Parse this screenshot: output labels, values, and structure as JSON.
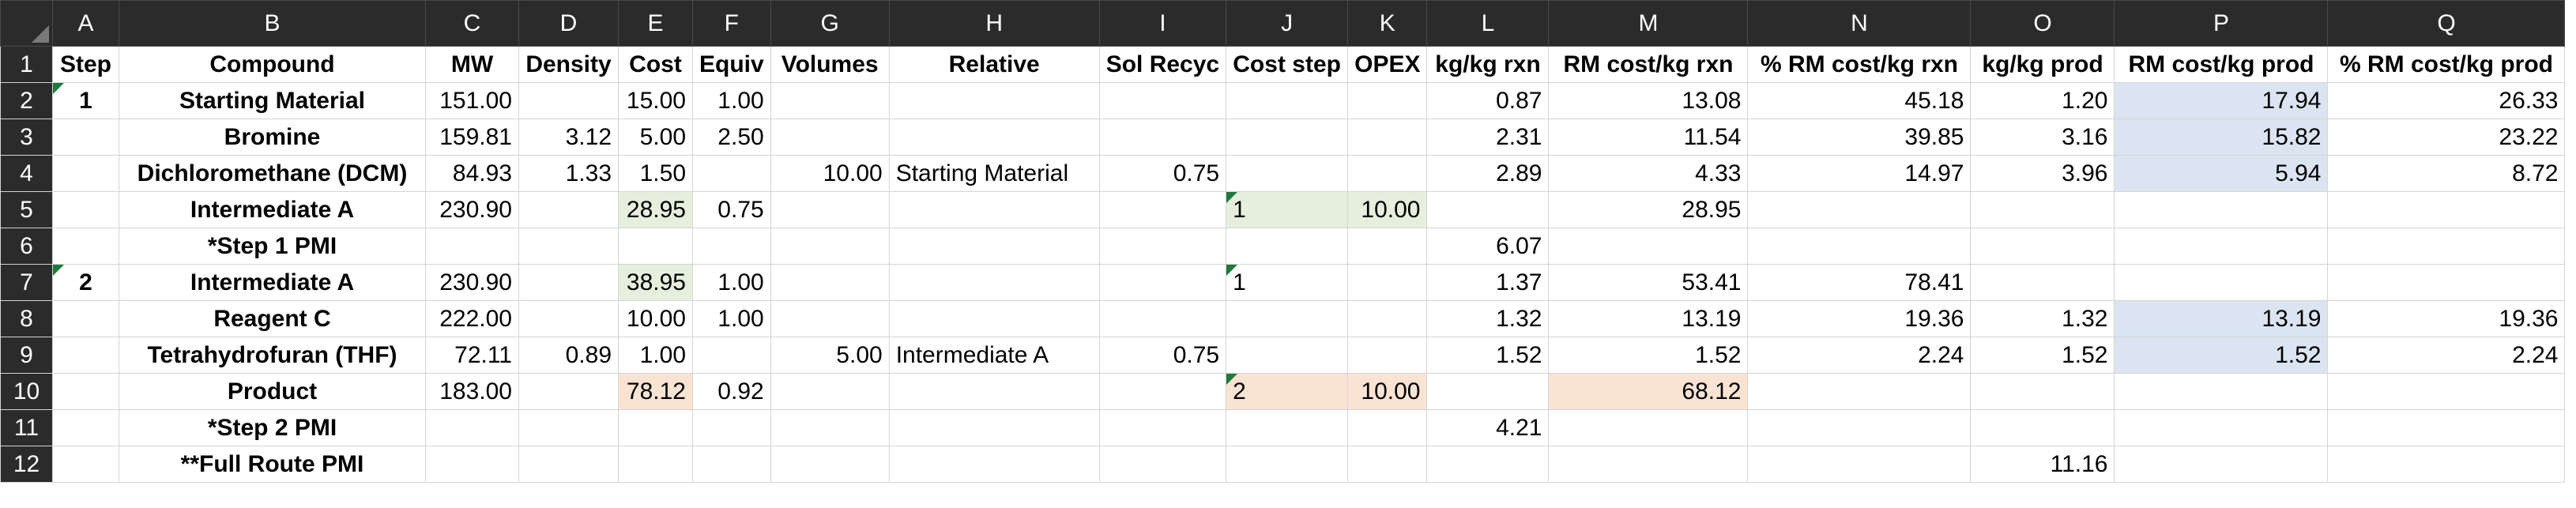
{
  "sheet": {
    "columns": [
      "A",
      "B",
      "C",
      "D",
      "E",
      "F",
      "G",
      "H",
      "I",
      "J",
      "K",
      "L",
      "M",
      "N",
      "O",
      "P",
      "Q"
    ],
    "row_numbers": [
      "1",
      "2",
      "3",
      "4",
      "5",
      "6",
      "7",
      "8",
      "9",
      "10",
      "11",
      "12"
    ],
    "header": [
      "Step",
      "Compound",
      "MW",
      "Density",
      "Cost",
      "Equiv",
      "Volumes",
      "Relative",
      "Sol Recyc",
      "Cost step",
      "OPEX",
      "kg/kg rxn",
      "RM cost/kg rxn",
      "% RM cost/kg rxn",
      "kg/kg prod",
      "RM cost/kg prod",
      "% RM cost/kg prod"
    ],
    "rows": [
      [
        "1",
        "Starting Material",
        "151.00",
        "",
        "15.00",
        "1.00",
        "",
        "",
        "",
        "",
        "",
        "0.87",
        "13.08",
        "45.18",
        "1.20",
        "17.94",
        "26.33"
      ],
      [
        "",
        "Bromine",
        "159.81",
        "3.12",
        "5.00",
        "2.50",
        "",
        "",
        "",
        "",
        "",
        "2.31",
        "11.54",
        "39.85",
        "3.16",
        "15.82",
        "23.22"
      ],
      [
        "",
        "Dichloromethane (DCM)",
        "84.93",
        "1.33",
        "1.50",
        "",
        "10.00",
        "Starting Material",
        "0.75",
        "",
        "",
        "2.89",
        "4.33",
        "14.97",
        "3.96",
        "5.94",
        "8.72"
      ],
      [
        "",
        "Intermediate A",
        "230.90",
        "",
        "28.95",
        "0.75",
        "",
        "",
        "",
        "1",
        "10.00",
        "",
        "28.95",
        "",
        "",
        "",
        ""
      ],
      [
        "",
        "*Step 1 PMI",
        "",
        "",
        "",
        "",
        "",
        "",
        "",
        "",
        "",
        "6.07",
        "",
        "",
        "",
        "",
        ""
      ],
      [
        "2",
        "Intermediate A",
        "230.90",
        "",
        "38.95",
        "1.00",
        "",
        "",
        "",
        "1",
        "",
        "1.37",
        "53.41",
        "78.41",
        "",
        "",
        ""
      ],
      [
        "",
        "Reagent C",
        "222.00",
        "",
        "10.00",
        "1.00",
        "",
        "",
        "",
        "",
        "",
        "1.32",
        "13.19",
        "19.36",
        "1.32",
        "13.19",
        "19.36"
      ],
      [
        "",
        "Tetrahydrofuran (THF)",
        "72.11",
        "0.89",
        "1.00",
        "",
        "5.00",
        "Intermediate A",
        "0.75",
        "",
        "",
        "1.52",
        "1.52",
        "2.24",
        "1.52",
        "1.52",
        "2.24"
      ],
      [
        "",
        "Product",
        "183.00",
        "",
        "78.12",
        "0.92",
        "",
        "",
        "",
        "2",
        "10.00",
        "",
        "68.12",
        "",
        "",
        "",
        ""
      ],
      [
        "",
        "*Step 2 PMI",
        "",
        "",
        "",
        "",
        "",
        "",
        "",
        "",
        "",
        "4.21",
        "",
        "",
        "",
        "",
        ""
      ],
      [
        "",
        "**Full Route PMI",
        "",
        "",
        "",
        "",
        "",
        "",
        "",
        "",
        "",
        "",
        "",
        "",
        "11.16",
        "",
        ""
      ]
    ]
  },
  "colors": {
    "green_fill": "#e6efdd",
    "peach_fill": "#fbe3d3",
    "blue_fill": "#dbe5f1",
    "header_bg": "#2b2b2b",
    "comment_marker": "#1f7a3a"
  }
}
